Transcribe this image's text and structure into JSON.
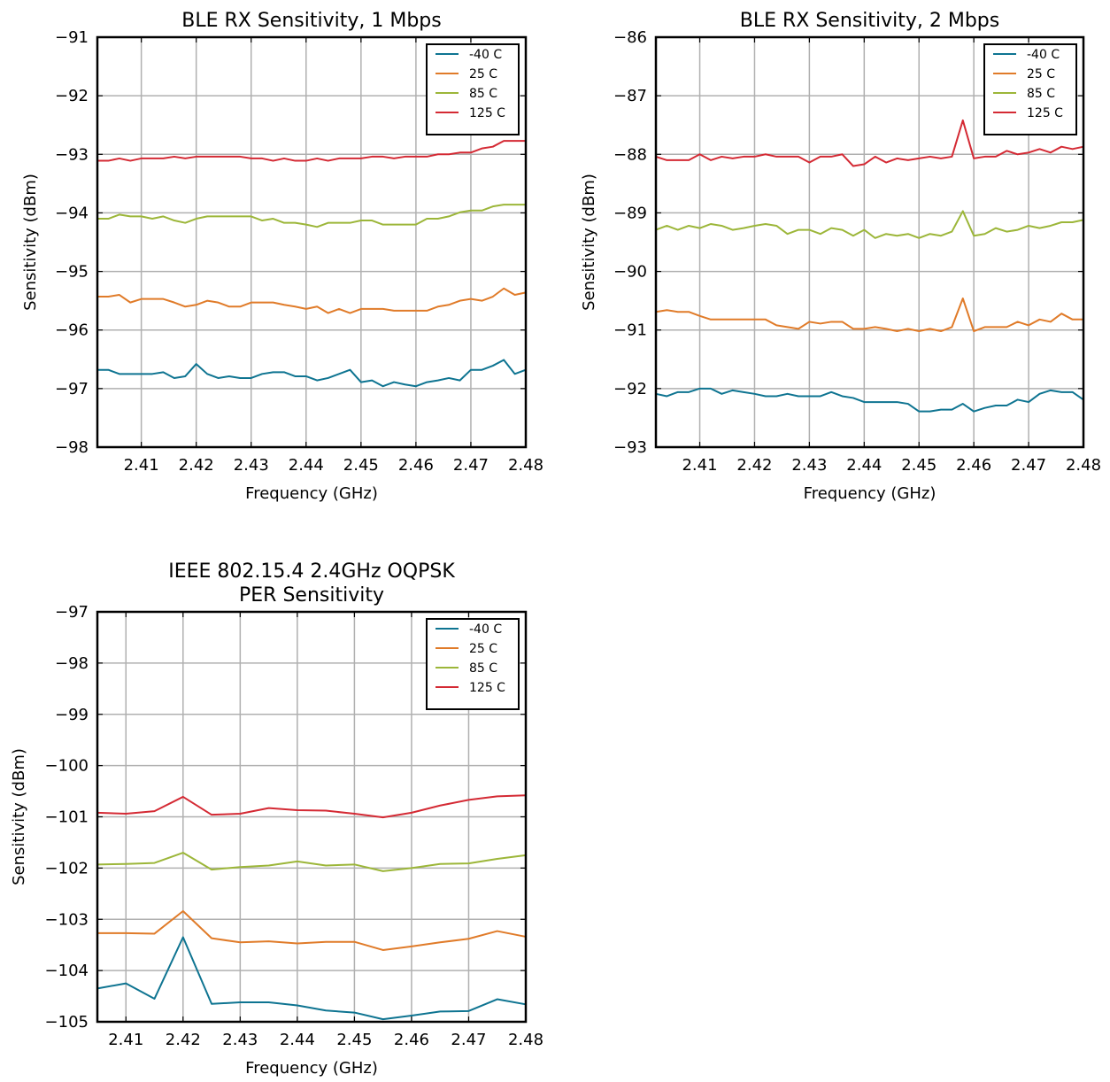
{
  "colors": {
    "series": [
      "#0e7491",
      "#e07b29",
      "#9cb639",
      "#d42a34"
    ],
    "grid": "#b0b0b0",
    "frame": "#000000",
    "background": "#ffffff"
  },
  "chart_data": [
    {
      "type": "line",
      "title": "BLE RX Sensitivity, 1 Mbps",
      "xlabel": "Frequency (GHz)",
      "ylabel": "Sensitivity (dBm)",
      "xlim": [
        2.402,
        2.48
      ],
      "ylim": [
        -98,
        -91
      ],
      "xticks": [
        2.41,
        2.42,
        2.43,
        2.44,
        2.45,
        2.46,
        2.47,
        2.48
      ],
      "yticks": [
        -91,
        -92,
        -93,
        -94,
        -95,
        -96,
        -97,
        -98
      ],
      "xtick_labels": [
        "2.41",
        "2.42",
        "2.43",
        "2.44",
        "2.45",
        "2.46",
        "2.47",
        "2.48"
      ],
      "ytick_labels": [
        "−91",
        "−92",
        "−93",
        "−94",
        "−95",
        "−96",
        "−97",
        "−98"
      ],
      "grid": true,
      "legend": "top-right",
      "x": [
        2.402,
        2.404,
        2.406,
        2.408,
        2.41,
        2.412,
        2.414,
        2.416,
        2.418,
        2.42,
        2.422,
        2.424,
        2.426,
        2.428,
        2.43,
        2.432,
        2.434,
        2.436,
        2.438,
        2.44,
        2.442,
        2.444,
        2.446,
        2.448,
        2.45,
        2.452,
        2.454,
        2.456,
        2.458,
        2.46,
        2.462,
        2.464,
        2.466,
        2.468,
        2.47,
        2.472,
        2.474,
        2.476,
        2.478,
        2.48
      ],
      "series": [
        {
          "name": "-40 C",
          "values": [
            -96.68,
            -96.68,
            -96.75,
            -96.75,
            -96.75,
            -96.75,
            -96.72,
            -96.82,
            -96.79,
            -96.58,
            -96.75,
            -96.82,
            -96.79,
            -96.82,
            -96.82,
            -96.75,
            -96.72,
            -96.72,
            -96.79,
            -96.79,
            -96.86,
            -96.82,
            -96.75,
            -96.68,
            -96.89,
            -96.86,
            -96.96,
            -96.89,
            -96.93,
            -96.96,
            -96.89,
            -96.86,
            -96.82,
            -96.86,
            -96.68,
            -96.68,
            -96.61,
            -96.51,
            -96.75,
            -96.68
          ]
        },
        {
          "name": "25 C",
          "values": [
            -95.43,
            -95.43,
            -95.4,
            -95.53,
            -95.47,
            -95.47,
            -95.47,
            -95.53,
            -95.6,
            -95.57,
            -95.5,
            -95.53,
            -95.6,
            -95.6,
            -95.53,
            -95.53,
            -95.53,
            -95.57,
            -95.6,
            -95.64,
            -95.6,
            -95.71,
            -95.64,
            -95.71,
            -95.64,
            -95.64,
            -95.64,
            -95.67,
            -95.67,
            -95.67,
            -95.67,
            -95.6,
            -95.57,
            -95.5,
            -95.47,
            -95.5,
            -95.43,
            -95.29,
            -95.4,
            -95.36
          ]
        },
        {
          "name": "85 C",
          "values": [
            -94.1,
            -94.1,
            -94.03,
            -94.06,
            -94.06,
            -94.1,
            -94.06,
            -94.13,
            -94.17,
            -94.1,
            -94.06,
            -94.06,
            -94.06,
            -94.06,
            -94.06,
            -94.13,
            -94.1,
            -94.17,
            -94.17,
            -94.2,
            -94.24,
            -94.17,
            -94.17,
            -94.17,
            -94.13,
            -94.13,
            -94.2,
            -94.2,
            -94.2,
            -94.2,
            -94.1,
            -94.1,
            -94.06,
            -93.99,
            -93.96,
            -93.96,
            -93.89,
            -93.86,
            -93.86,
            -93.86
          ]
        },
        {
          "name": "125 C",
          "values": [
            -93.11,
            -93.11,
            -93.07,
            -93.11,
            -93.07,
            -93.07,
            -93.07,
            -93.04,
            -93.07,
            -93.04,
            -93.04,
            -93.04,
            -93.04,
            -93.04,
            -93.07,
            -93.07,
            -93.11,
            -93.07,
            -93.11,
            -93.11,
            -93.07,
            -93.11,
            -93.07,
            -93.07,
            -93.07,
            -93.04,
            -93.04,
            -93.07,
            -93.04,
            -93.04,
            -93.04,
            -93.0,
            -93.0,
            -92.97,
            -92.97,
            -92.9,
            -92.87,
            -92.77,
            -92.77,
            -92.77
          ]
        }
      ]
    },
    {
      "type": "line",
      "title": "BLE RX Sensitivity, 2 Mbps",
      "xlabel": "Frequency (GHz)",
      "ylabel": "Sensitivity (dBm)",
      "xlim": [
        2.402,
        2.48
      ],
      "ylim": [
        -93,
        -86
      ],
      "xticks": [
        2.41,
        2.42,
        2.43,
        2.44,
        2.45,
        2.46,
        2.47,
        2.48
      ],
      "yticks": [
        -86,
        -87,
        -88,
        -89,
        -90,
        -91,
        -92,
        -93
      ],
      "xtick_labels": [
        "2.41",
        "2.42",
        "2.43",
        "2.44",
        "2.45",
        "2.46",
        "2.47",
        "2.48"
      ],
      "ytick_labels": [
        "−86",
        "−87",
        "−88",
        "−89",
        "−90",
        "−91",
        "−92",
        "−93"
      ],
      "grid": true,
      "legend": "top-right",
      "x": [
        2.402,
        2.404,
        2.406,
        2.408,
        2.41,
        2.412,
        2.414,
        2.416,
        2.418,
        2.42,
        2.422,
        2.424,
        2.426,
        2.428,
        2.43,
        2.432,
        2.434,
        2.436,
        2.438,
        2.44,
        2.442,
        2.444,
        2.446,
        2.448,
        2.45,
        2.452,
        2.454,
        2.456,
        2.458,
        2.46,
        2.462,
        2.464,
        2.466,
        2.468,
        2.47,
        2.472,
        2.474,
        2.476,
        2.478,
        2.48
      ],
      "series": [
        {
          "name": "-40 C",
          "values": [
            -92.09,
            -92.13,
            -92.06,
            -92.06,
            -92.0,
            -92.0,
            -92.09,
            -92.03,
            -92.06,
            -92.09,
            -92.13,
            -92.13,
            -92.09,
            -92.13,
            -92.13,
            -92.13,
            -92.06,
            -92.13,
            -92.16,
            -92.23,
            -92.23,
            -92.23,
            -92.23,
            -92.26,
            -92.39,
            -92.39,
            -92.36,
            -92.36,
            -92.26,
            -92.39,
            -92.33,
            -92.29,
            -92.29,
            -92.19,
            -92.23,
            -92.09,
            -92.03,
            -92.06,
            -92.06,
            -92.19
          ]
        },
        {
          "name": "25 C",
          "values": [
            -90.69,
            -90.66,
            -90.69,
            -90.69,
            -90.76,
            -90.82,
            -90.82,
            -90.82,
            -90.82,
            -90.82,
            -90.82,
            -90.92,
            -90.95,
            -90.98,
            -90.86,
            -90.89,
            -90.86,
            -90.86,
            -90.98,
            -90.98,
            -90.95,
            -90.98,
            -91.02,
            -90.98,
            -91.02,
            -90.98,
            -91.02,
            -90.95,
            -90.46,
            -91.02,
            -90.95,
            -90.95,
            -90.95,
            -90.86,
            -90.92,
            -90.82,
            -90.86,
            -90.72,
            -90.82,
            -90.82
          ]
        },
        {
          "name": "85 C",
          "values": [
            -89.29,
            -89.22,
            -89.29,
            -89.22,
            -89.26,
            -89.19,
            -89.22,
            -89.29,
            -89.26,
            -89.22,
            -89.19,
            -89.22,
            -89.36,
            -89.29,
            -89.29,
            -89.36,
            -89.26,
            -89.29,
            -89.39,
            -89.29,
            -89.43,
            -89.36,
            -89.39,
            -89.36,
            -89.43,
            -89.36,
            -89.39,
            -89.32,
            -88.97,
            -89.39,
            -89.36,
            -89.26,
            -89.32,
            -89.29,
            -89.22,
            -89.26,
            -89.22,
            -89.16,
            -89.16,
            -89.12
          ]
        },
        {
          "name": "125 C",
          "values": [
            -88.04,
            -88.1,
            -88.1,
            -88.1,
            -88.0,
            -88.1,
            -88.04,
            -88.07,
            -88.04,
            -88.04,
            -88.0,
            -88.04,
            -88.04,
            -88.04,
            -88.14,
            -88.04,
            -88.04,
            -88.0,
            -88.2,
            -88.17,
            -88.04,
            -88.14,
            -88.07,
            -88.1,
            -88.07,
            -88.04,
            -88.07,
            -88.04,
            -87.42,
            -88.07,
            -88.04,
            -88.04,
            -87.94,
            -88.0,
            -87.97,
            -87.91,
            -87.97,
            -87.87,
            -87.91,
            -87.87
          ]
        }
      ]
    },
    {
      "type": "line",
      "title": "IEEE 802.15.4 2.4GHz OQPSK\nPER Sensitivity",
      "title_lines": [
        "IEEE 802.15.4 2.4GHz OQPSK",
        "PER Sensitivity"
      ],
      "xlabel": "Frequency (GHz)",
      "ylabel": "Sensitivity (dBm)",
      "xlim": [
        2.405,
        2.48
      ],
      "ylim": [
        -105,
        -97
      ],
      "xticks": [
        2.41,
        2.42,
        2.43,
        2.44,
        2.45,
        2.46,
        2.47,
        2.48
      ],
      "yticks": [
        -97,
        -98,
        -99,
        -100,
        -101,
        -102,
        -103,
        -104,
        -105
      ],
      "xtick_labels": [
        "2.41",
        "2.42",
        "2.43",
        "2.44",
        "2.45",
        "2.46",
        "2.47",
        "2.48"
      ],
      "ytick_labels": [
        "−97",
        "−98",
        "−99",
        "−100",
        "−101",
        "−102",
        "−103",
        "−104",
        "−105"
      ],
      "grid": true,
      "legend": "top-right",
      "x": [
        2.405,
        2.41,
        2.415,
        2.42,
        2.425,
        2.43,
        2.435,
        2.44,
        2.445,
        2.45,
        2.455,
        2.46,
        2.465,
        2.47,
        2.475,
        2.48
      ],
      "series": [
        {
          "name": "-40 C",
          "values": [
            -104.35,
            -104.25,
            -104.55,
            -103.35,
            -104.65,
            -104.62,
            -104.62,
            -104.68,
            -104.78,
            -104.82,
            -104.95,
            -104.88,
            -104.8,
            -104.79,
            -104.56,
            -104.66
          ]
        },
        {
          "name": "25 C",
          "values": [
            -103.27,
            -103.27,
            -103.28,
            -102.84,
            -103.37,
            -103.45,
            -103.43,
            -103.47,
            -103.44,
            -103.44,
            -103.6,
            -103.53,
            -103.45,
            -103.38,
            -103.23,
            -103.34
          ]
        },
        {
          "name": "85 C",
          "values": [
            -101.93,
            -101.92,
            -101.9,
            -101.7,
            -102.03,
            -101.98,
            -101.95,
            -101.87,
            -101.95,
            -101.93,
            -102.06,
            -102.0,
            -101.92,
            -101.91,
            -101.82,
            -101.75
          ]
        },
        {
          "name": "125 C",
          "values": [
            -100.92,
            -100.94,
            -100.89,
            -100.61,
            -100.96,
            -100.94,
            -100.83,
            -100.87,
            -100.88,
            -100.94,
            -101.01,
            -100.92,
            -100.78,
            -100.67,
            -100.6,
            -100.58
          ]
        }
      ]
    }
  ]
}
